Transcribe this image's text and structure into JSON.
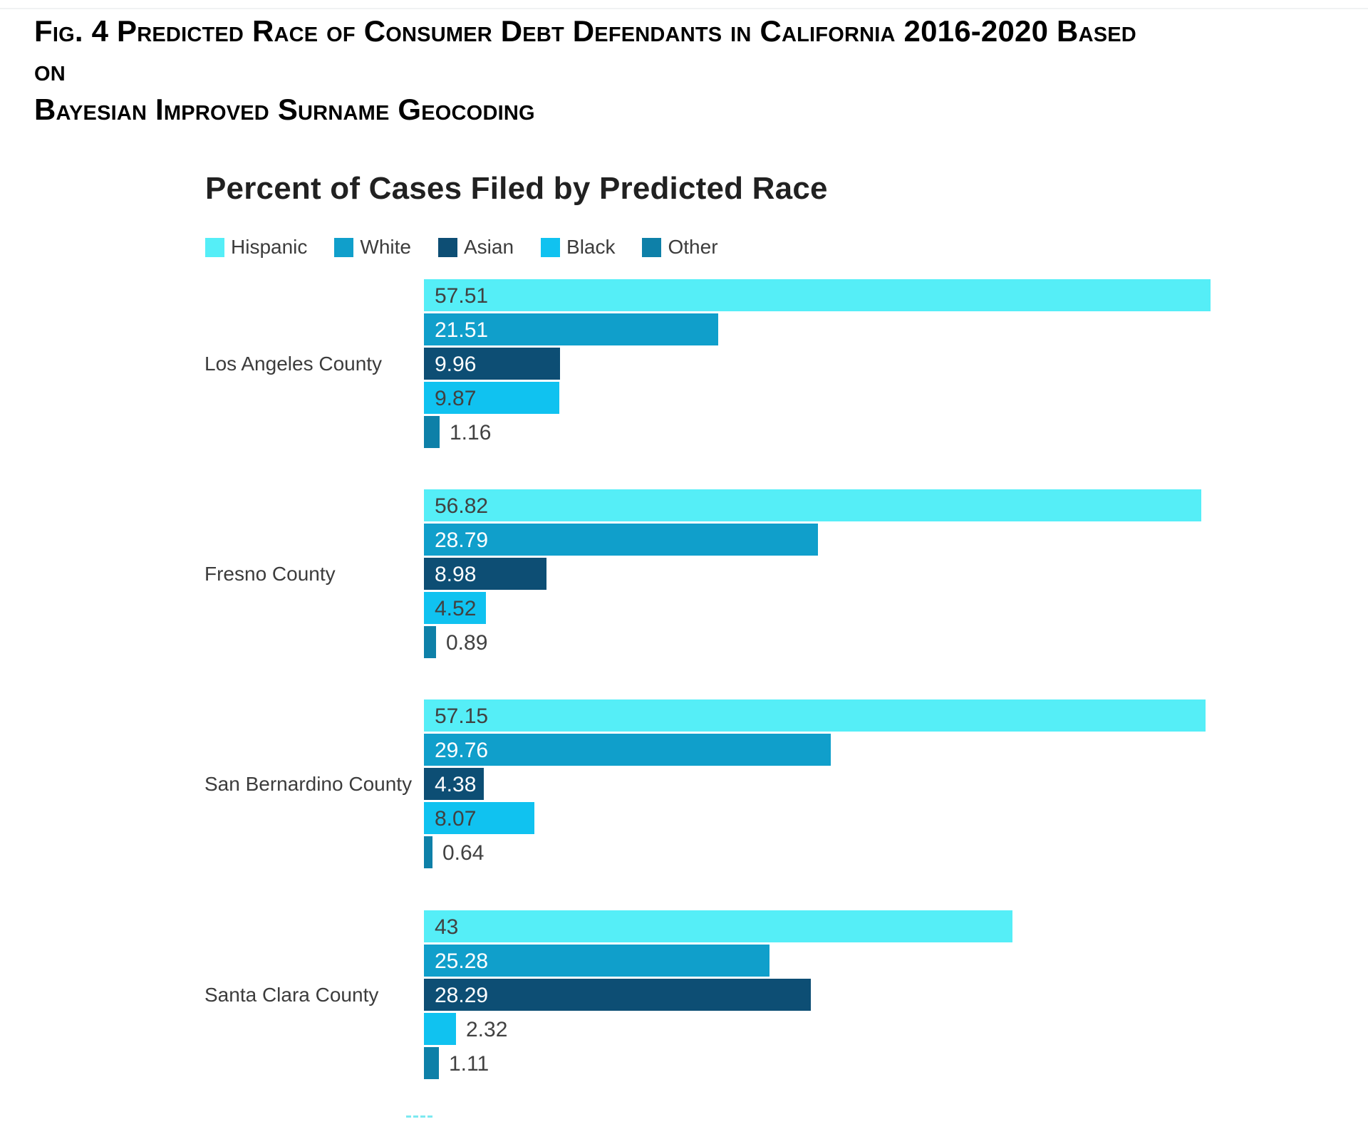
{
  "caption": {
    "line1": "Fig. 4 Predicted Race of Consumer Debt Defendants in California 2016-2020 Based on",
    "line2": "Bayesian Improved Surname Geocoding"
  },
  "chart_data": {
    "type": "bar",
    "orientation": "horizontal",
    "title": "Percent of Cases Filed by Predicted Race",
    "categories": [
      "Los Angeles County",
      "Fresno County",
      "San Bernardino County",
      "Santa Clara County"
    ],
    "series": [
      {
        "name": "Hispanic",
        "color": "#55EEF7",
        "label_style": "dark",
        "values": [
          57.51,
          56.82,
          57.15,
          43
        ]
      },
      {
        "name": "White",
        "color": "#109FCB",
        "label_style": "light",
        "values": [
          21.51,
          28.79,
          29.76,
          25.28
        ]
      },
      {
        "name": "Asian",
        "color": "#0D4E74",
        "label_style": "light",
        "values": [
          9.96,
          8.98,
          4.38,
          28.29
        ]
      },
      {
        "name": "Black",
        "color": "#10C2F0",
        "label_style": "dark",
        "values": [
          9.87,
          4.52,
          8.07,
          2.32
        ]
      },
      {
        "name": "Other",
        "color": "#0E80A8",
        "label_style": "light",
        "values": [
          1.16,
          0.89,
          0.64,
          1.11
        ]
      }
    ],
    "value_labels": [
      [
        "57.51",
        "21.51",
        "9.96",
        "9.87",
        "1.16"
      ],
      [
        "56.82",
        "28.79",
        "8.98",
        "4.52",
        "0.89"
      ],
      [
        "57.15",
        "29.76",
        "4.38",
        "8.07",
        "0.64"
      ],
      [
        "43",
        "25.28",
        "28.29",
        "2.32",
        "1.11"
      ]
    ],
    "xlim": [
      0,
      60
    ],
    "grid": false,
    "legend_position": "top",
    "legend_labels": [
      "Hispanic",
      "White",
      "Asian",
      "Black",
      "Other"
    ]
  },
  "styles": {
    "value_text_dark": "#414141",
    "value_text_light": "#ffffff",
    "category_text": "#3c3c3c",
    "title_color": "#212121",
    "caption_color": "#000000",
    "top_rule_color": "#f0f2f3",
    "background": "#ffffff",
    "cropped_mark_color": "#7de9f0"
  },
  "cropped_marks": {
    "count": 4
  }
}
